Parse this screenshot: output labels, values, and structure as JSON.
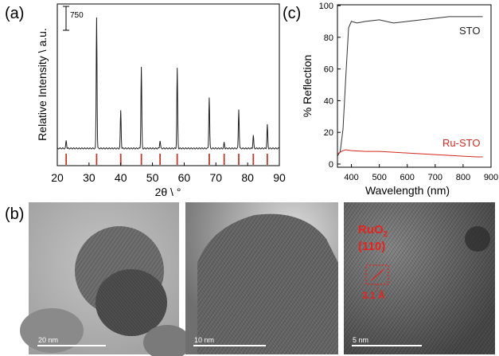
{
  "panels": {
    "a": "(a)",
    "b": "(b)",
    "c": "(c)"
  },
  "colors": {
    "series_sto": "#333333",
    "series_ru_sto": "#d6281e",
    "reference_lines": "#c0392b",
    "annotation": "#e8231e"
  },
  "chart_data": [
    {
      "type": "line",
      "panel": "(a)",
      "xlabel": "2θ \\ °",
      "ylabel": "Relative Intensity \\ a.u.",
      "xlim": [
        20,
        90
      ],
      "xticks": [
        "20",
        "30",
        "40",
        "50",
        "60",
        "70",
        "80",
        "90"
      ],
      "yticks_shown": false,
      "scale_bar_label": "750",
      "peaks": [
        {
          "x": 22.8,
          "height": 60
        },
        {
          "x": 32.4,
          "height": 1000
        },
        {
          "x": 40.0,
          "height": 290
        },
        {
          "x": 46.5,
          "height": 620
        },
        {
          "x": 52.4,
          "height": 60
        },
        {
          "x": 57.8,
          "height": 610
        },
        {
          "x": 67.9,
          "height": 390
        },
        {
          "x": 72.6,
          "height": 45
        },
        {
          "x": 77.2,
          "height": 300
        },
        {
          "x": 81.8,
          "height": 100
        },
        {
          "x": 86.2,
          "height": 180
        }
      ],
      "reference_lines": [
        22.8,
        32.4,
        40.0,
        46.5,
        52.4,
        57.8,
        67.9,
        72.6,
        77.2,
        81.8,
        86.2
      ]
    },
    {
      "type": "line",
      "panel": "(c)",
      "xlabel": "Wavelength (nm)",
      "ylabel": "% Reflection",
      "xlim": [
        350,
        900
      ],
      "ylim": [
        0,
        100
      ],
      "xticks": [
        "400",
        "500",
        "600",
        "700",
        "800",
        "900"
      ],
      "yticks": [
        "0",
        "20",
        "40",
        "60",
        "80",
        "100"
      ],
      "series": [
        {
          "name": "STO",
          "x": [
            350,
            360,
            370,
            380,
            390,
            400,
            420,
            450,
            500,
            550,
            600,
            650,
            700,
            750,
            800,
            850,
            870
          ],
          "y": [
            5,
            8,
            22,
            55,
            86,
            90,
            89,
            90,
            91,
            89,
            90,
            91,
            92,
            93,
            93,
            93,
            93
          ]
        },
        {
          "name": "Ru-STO",
          "x": [
            350,
            360,
            370,
            380,
            400,
            450,
            500,
            550,
            600,
            650,
            700,
            750,
            800,
            850,
            870
          ],
          "y": [
            6.5,
            7.5,
            8.5,
            9,
            8.5,
            8,
            8,
            7.5,
            7,
            6.5,
            6,
            5.5,
            5,
            4.5,
            4.5
          ]
        }
      ]
    }
  ],
  "tem": {
    "scale_left": "20 nm",
    "scale_middle": "10 nm",
    "scale_right": "5 nm",
    "ruo2_label": "RuO",
    "ruo2_sub": "2",
    "plane": "(110)",
    "spacing": "3.1 Å"
  }
}
